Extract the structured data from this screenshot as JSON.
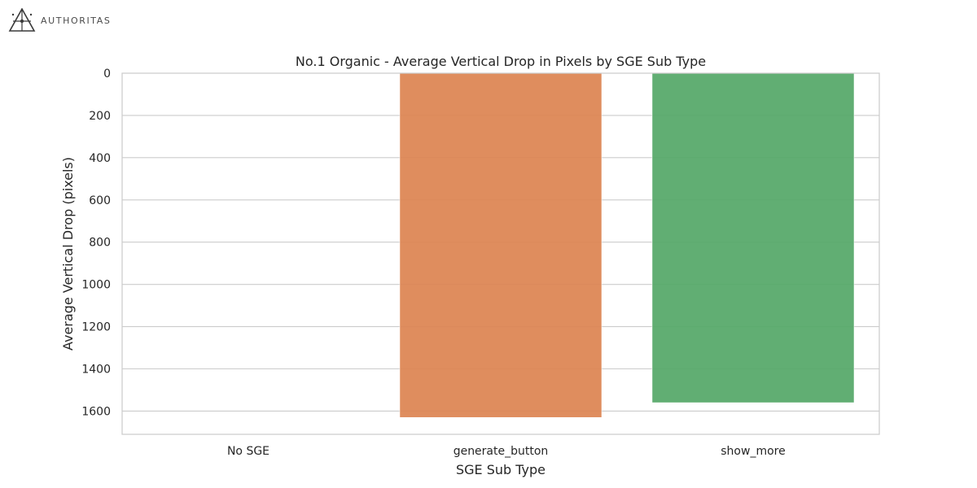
{
  "logo": {
    "text": "AUTHORITAS",
    "icon": "authoritas-compass-logo-icon"
  },
  "chart_data": {
    "type": "bar",
    "title": "No.1 Organic - Average Vertical Drop in Pixels by SGE Sub Type",
    "xlabel": "SGE Sub Type",
    "ylabel": "Average Vertical Drop (pixels)",
    "categories": [
      "No SGE",
      "generate_button",
      "show_more"
    ],
    "values": [
      0,
      1630,
      1560
    ],
    "colors": [
      "#4c72b0",
      "#dd8452",
      "#55a868"
    ],
    "ylim": [
      0,
      1710
    ],
    "y_inverted": true,
    "yticks": [
      0,
      200,
      400,
      600,
      800,
      1000,
      1200,
      1400,
      1600
    ],
    "grid": "horizontal",
    "style": "seaborn-whitegrid"
  }
}
